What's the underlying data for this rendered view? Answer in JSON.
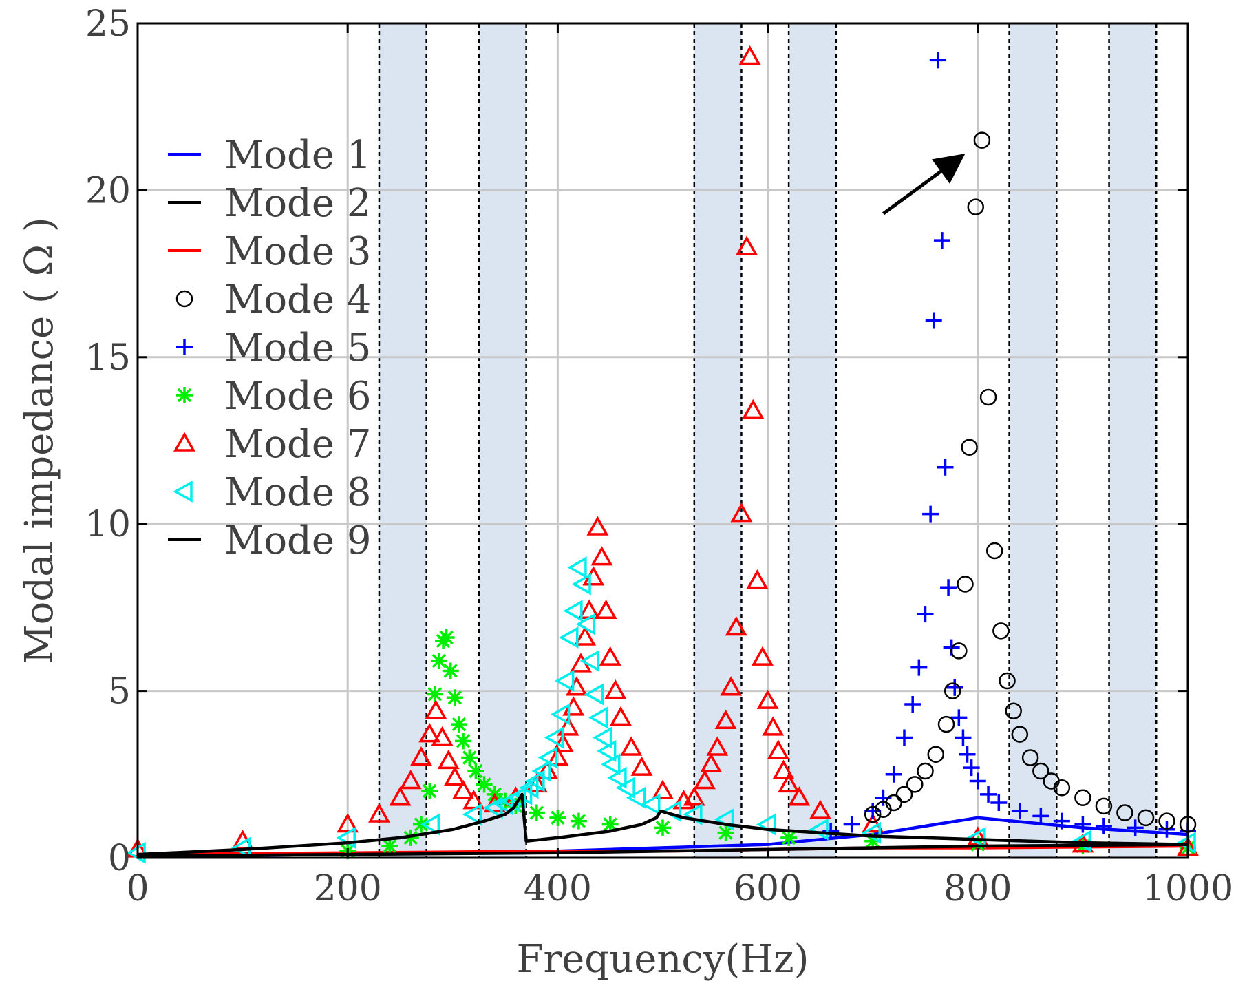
{
  "chart_data": {
    "type": "scatter",
    "title": "",
    "xlabel": "Frequency(Hz)",
    "ylabel": "Modal impedance ( Ω )",
    "xlim": [
      0,
      1000
    ],
    "ylim": [
      0,
      25
    ],
    "xticks": [
      "0",
      "200",
      "400",
      "600",
      "800",
      "1000"
    ],
    "yticks": [
      "0",
      "5",
      "10",
      "15",
      "20",
      "25"
    ],
    "grid": true,
    "legend_position": "upper-left",
    "shaded_bands": [
      [
        230,
        275
      ],
      [
        325,
        370
      ],
      [
        530,
        575
      ],
      [
        620,
        665
      ],
      [
        830,
        875
      ],
      [
        925,
        970
      ]
    ],
    "annotation": {
      "type": "arrow",
      "from": [
        710,
        19.3
      ],
      "to": [
        788,
        21.1
      ],
      "target": "Mode 4 peak"
    },
    "series": [
      {
        "name": "Mode 1",
        "marker": "line",
        "color": "#0000ff",
        "x": [
          0,
          200,
          400,
          600,
          700,
          800,
          900,
          1000
        ],
        "y": [
          0.05,
          0.1,
          0.2,
          0.4,
          0.7,
          1.2,
          0.9,
          0.7
        ]
      },
      {
        "name": "Mode 2",
        "marker": "line",
        "color": "#000000",
        "x": [
          0,
          200,
          400,
          500,
          600,
          700,
          800,
          1000
        ],
        "y": [
          0.05,
          0.1,
          0.15,
          0.2,
          0.25,
          0.3,
          0.35,
          0.4
        ]
      },
      {
        "name": "Mode 3",
        "marker": "line",
        "color": "#ff0000",
        "x": [
          0,
          200,
          400,
          500,
          600,
          700,
          800,
          1000
        ],
        "y": [
          0.1,
          0.15,
          0.2,
          0.2,
          0.25,
          0.3,
          0.3,
          0.35
        ]
      },
      {
        "name": "Mode 4",
        "marker": "circle",
        "color": "#000000",
        "x": [
          700,
          710,
          720,
          730,
          740,
          750,
          760,
          770,
          776,
          782,
          788,
          792,
          798,
          804,
          810,
          816,
          822,
          828,
          834,
          840,
          850,
          860,
          870,
          880,
          900,
          920,
          940,
          960,
          980,
          1000
        ],
        "y": [
          1.3,
          1.45,
          1.65,
          1.9,
          2.2,
          2.6,
          3.1,
          4.0,
          5.0,
          6.2,
          8.2,
          12.3,
          19.5,
          21.5,
          13.8,
          9.2,
          6.8,
          5.3,
          4.4,
          3.7,
          3.0,
          2.6,
          2.3,
          2.1,
          1.8,
          1.55,
          1.35,
          1.2,
          1.1,
          1.0
        ]
      },
      {
        "name": "Mode 5",
        "marker": "plus",
        "color": "#0000ff",
        "x": [
          660,
          680,
          700,
          710,
          720,
          730,
          738,
          744,
          750,
          755,
          758,
          762,
          766,
          769,
          772,
          775,
          778,
          782,
          786,
          790,
          794,
          800,
          810,
          820,
          840,
          860,
          880,
          900,
          920,
          950,
          980,
          1000
        ],
        "y": [
          0.8,
          1.0,
          1.4,
          1.8,
          2.5,
          3.6,
          4.6,
          5.7,
          7.3,
          10.3,
          16.1,
          23.9,
          18.5,
          11.7,
          8.1,
          6.3,
          5.1,
          4.2,
          3.6,
          3.1,
          2.7,
          2.3,
          1.9,
          1.65,
          1.4,
          1.25,
          1.1,
          1.0,
          0.95,
          0.9,
          0.85,
          0.8
        ]
      },
      {
        "name": "Mode 6",
        "marker": "asterisk",
        "color": "#00ee00",
        "x": [
          200,
          240,
          260,
          270,
          278,
          283,
          287,
          291,
          294,
          298,
          302,
          306,
          310,
          316,
          322,
          330,
          340,
          350,
          360,
          380,
          400,
          420,
          450,
          500,
          560,
          620,
          700,
          800,
          900,
          1000
        ],
        "y": [
          0.2,
          0.35,
          0.6,
          1.0,
          2.0,
          4.9,
          5.9,
          6.5,
          6.6,
          5.6,
          4.8,
          4.0,
          3.5,
          3.0,
          2.6,
          2.2,
          1.9,
          1.7,
          1.55,
          1.35,
          1.2,
          1.1,
          1.0,
          0.9,
          0.75,
          0.6,
          0.5,
          0.4,
          0.35,
          0.3
        ]
      },
      {
        "name": "Mode 7",
        "marker": "triangle-up",
        "color": "#ff0000",
        "x": [
          0,
          100,
          200,
          230,
          250,
          260,
          270,
          278,
          284,
          290,
          296,
          302,
          310,
          320,
          340,
          360,
          380,
          390,
          400,
          405,
          410,
          415,
          418,
          422,
          426,
          430,
          434,
          438,
          442,
          446,
          450,
          455,
          460,
          470,
          480,
          500,
          520,
          530,
          540,
          546,
          552,
          560,
          565,
          570,
          575,
          580,
          583,
          586,
          590,
          595,
          600,
          605,
          610,
          615,
          620,
          630,
          650,
          700,
          800,
          900,
          1000
        ],
        "y": [
          0.25,
          0.5,
          1.0,
          1.3,
          1.8,
          2.3,
          3.0,
          3.7,
          4.4,
          3.6,
          2.9,
          2.4,
          2.0,
          1.7,
          1.6,
          1.8,
          2.2,
          2.6,
          3.0,
          3.4,
          3.9,
          4.5,
          5.1,
          5.8,
          6.6,
          7.4,
          8.4,
          9.9,
          9.0,
          7.4,
          6.0,
          5.0,
          4.2,
          3.3,
          2.7,
          2.0,
          1.7,
          1.8,
          2.3,
          2.8,
          3.3,
          4.1,
          5.1,
          6.9,
          10.3,
          18.3,
          24.0,
          13.4,
          8.3,
          6.0,
          4.7,
          3.9,
          3.2,
          2.6,
          2.2,
          1.8,
          1.4,
          1.0,
          0.6,
          0.4,
          0.3
        ]
      },
      {
        "name": "Mode 8",
        "marker": "triangle-left",
        "color": "#00eeee",
        "x": [
          0,
          100,
          200,
          280,
          320,
          340,
          350,
          356,
          362,
          368,
          374,
          380,
          386,
          392,
          398,
          404,
          408,
          412,
          416,
          420,
          424,
          428,
          432,
          436,
          440,
          444,
          448,
          452,
          458,
          466,
          476,
          490,
          510,
          530,
          560,
          600,
          650,
          700,
          800,
          900,
          1000
        ],
        "y": [
          0.15,
          0.3,
          0.6,
          1.0,
          1.3,
          1.5,
          1.6,
          1.7,
          1.8,
          1.9,
          2.1,
          2.3,
          2.6,
          3.0,
          3.6,
          4.3,
          5.3,
          6.6,
          7.4,
          8.7,
          8.2,
          7.0,
          5.9,
          4.9,
          4.2,
          3.6,
          3.2,
          2.8,
          2.4,
          2.1,
          1.8,
          1.6,
          1.4,
          1.3,
          1.15,
          1.0,
          0.85,
          0.75,
          0.6,
          0.5,
          0.45
        ]
      },
      {
        "name": "Mode 9",
        "marker": "line",
        "color": "#000000",
        "x": [
          0,
          100,
          200,
          250,
          300,
          330,
          350,
          358,
          362,
          366,
          370,
          400,
          450,
          480,
          494,
          498,
          520,
          560,
          600,
          650,
          700,
          800,
          900,
          1000
        ],
        "y": [
          0.1,
          0.25,
          0.45,
          0.6,
          0.85,
          1.1,
          1.3,
          1.5,
          1.7,
          1.9,
          0.5,
          0.6,
          0.8,
          1.0,
          1.2,
          1.4,
          1.2,
          1.0,
          0.85,
          0.75,
          0.65,
          0.55,
          0.45,
          0.4
        ]
      }
    ]
  }
}
